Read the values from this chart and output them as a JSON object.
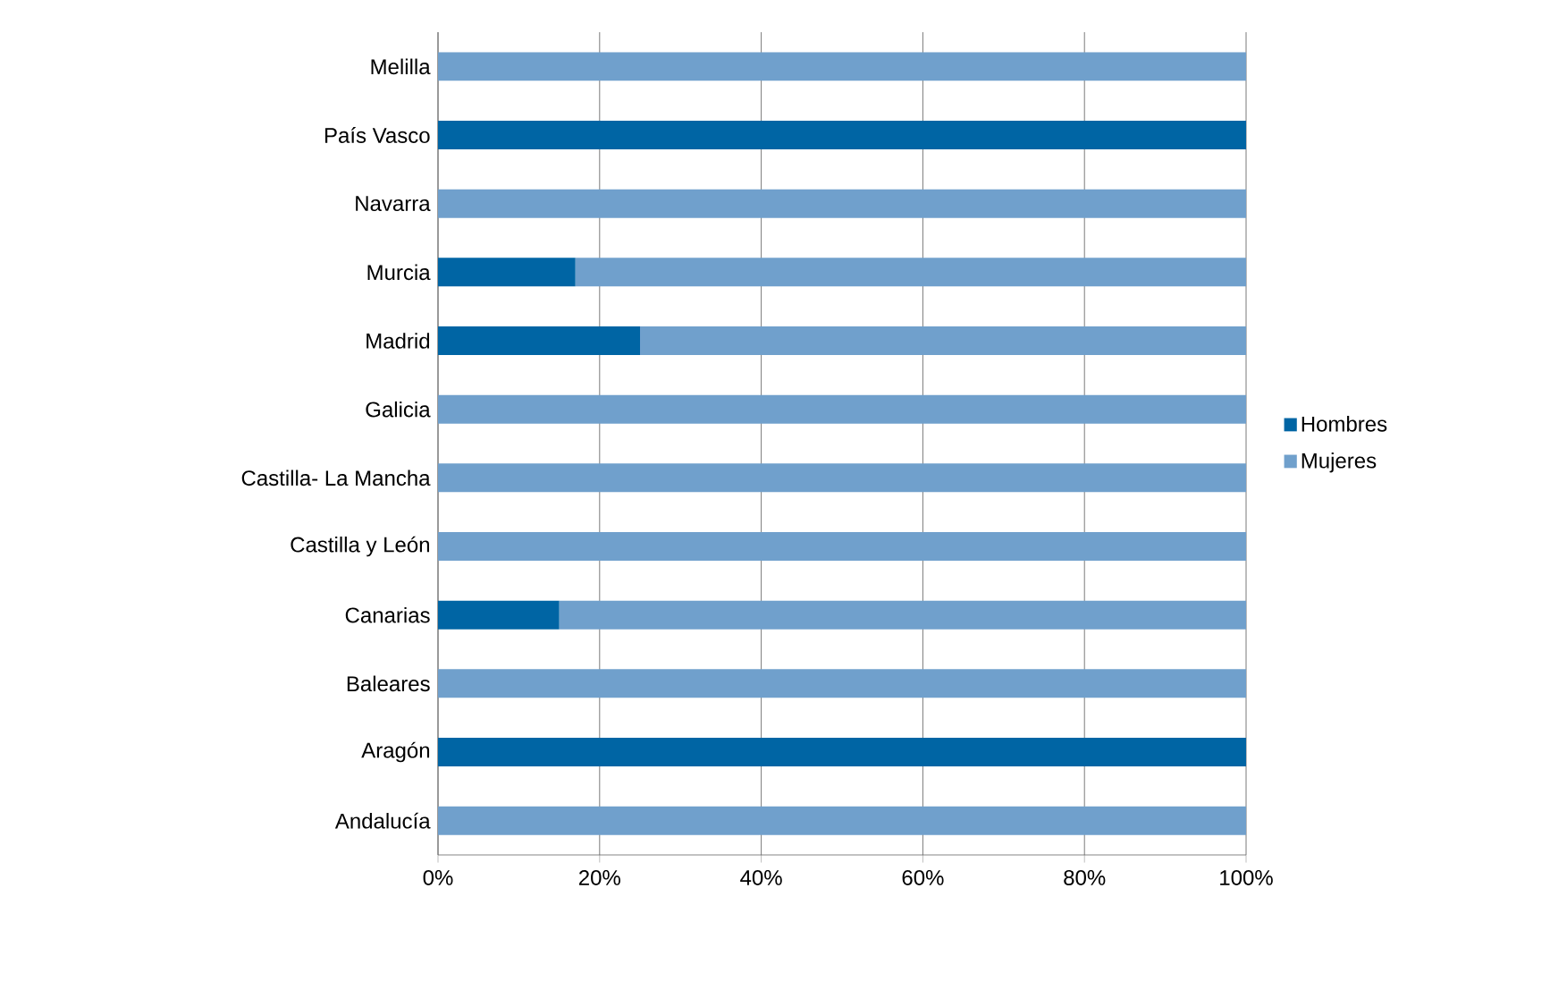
{
  "chart_data": {
    "type": "bar",
    "orientation": "horizontal",
    "stacked": true,
    "categories": [
      "Melilla",
      "País Vasco",
      "Navarra",
      "Murcia",
      "Madrid",
      "Galicia",
      "Castilla- La Mancha",
      "Castilla y León",
      "Canarias",
      "Baleares",
      "Aragón",
      "Andalucía"
    ],
    "series": [
      {
        "name": "Hombres",
        "color": "#0065a4",
        "values": [
          0,
          100,
          0,
          17,
          25,
          0,
          0,
          0,
          15,
          0,
          100,
          0
        ]
      },
      {
        "name": "Mujeres",
        "color": "#70a0cc",
        "values": [
          100,
          0,
          100,
          83,
          75,
          100,
          100,
          100,
          85,
          100,
          0,
          100
        ]
      }
    ],
    "xlim": [
      0,
      100
    ],
    "xticks": [
      {
        "value": 0,
        "label": "0%"
      },
      {
        "value": 20,
        "label": "20%"
      },
      {
        "value": 40,
        "label": "40%"
      },
      {
        "value": 60,
        "label": "60%"
      },
      {
        "value": 80,
        "label": "80%"
      },
      {
        "value": 100,
        "label": "100%"
      }
    ],
    "grid": "x",
    "legend": "right"
  }
}
